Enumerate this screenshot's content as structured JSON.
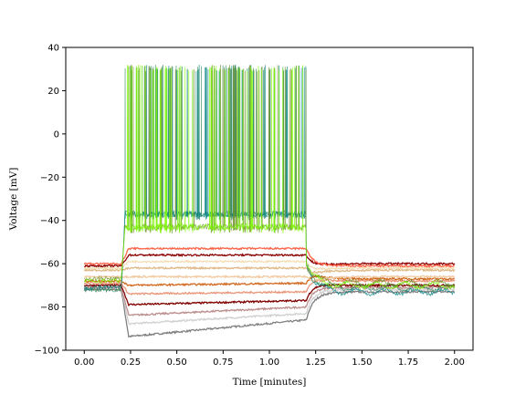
{
  "chart_data": {
    "type": "line",
    "title": "",
    "xlabel": "Time [minutes]",
    "ylabel": "Voltage [mV]",
    "xlim": [
      -0.1,
      2.1
    ],
    "ylim": [
      -100,
      40
    ],
    "xticks": [
      "0.00",
      "0.25",
      "0.50",
      "0.75",
      "1.00",
      "1.25",
      "1.50",
      "1.75",
      "2.00"
    ],
    "yticks": [
      "−100",
      "−80",
      "−60",
      "−40",
      "−20",
      "0",
      "20",
      "40"
    ],
    "grid": false,
    "legend": "none",
    "stimulus_window": [
      0.2,
      1.2
    ],
    "spike_peak_mV": 30,
    "spike_count_approx": 50,
    "series": [
      {
        "color": "#808080",
        "baseline": -72,
        "step_start": -94,
        "step_end": -86,
        "recovery": -73
      },
      {
        "color": "#d0d0d0",
        "baseline": -71,
        "step_start": -88,
        "step_end": -83,
        "recovery": -72
      },
      {
        "color": "#bc8f8f",
        "baseline": -71,
        "step_start": -84,
        "step_end": -80,
        "recovery": -71
      },
      {
        "color": "#800000",
        "baseline": -70,
        "step_start": -79,
        "step_end": -77,
        "recovery": -70
      },
      {
        "color": "#e9967a",
        "baseline": -69,
        "step_start": -74,
        "step_end": -73,
        "recovery": -68
      },
      {
        "color": "#d2691e",
        "baseline": -68,
        "step_start": -70,
        "step_end": -69,
        "recovery": -67
      },
      {
        "color": "#f0c9a0",
        "baseline": -66,
        "step_start": -66,
        "step_end": -66,
        "recovery": -66
      },
      {
        "color": "#deb887",
        "baseline": -63,
        "step_start": -62,
        "step_end": -62,
        "recovery": -63
      },
      {
        "color": "#f5deb3",
        "baseline": -62,
        "step_start": -59,
        "step_end": -59,
        "recovery": -62
      },
      {
        "color": "#8b0000",
        "baseline": -61,
        "step_start": -56,
        "step_end": -56,
        "recovery": -60
      },
      {
        "color": "#ff6347",
        "baseline": -60,
        "step_start": -53,
        "step_end": -53,
        "recovery": -61
      },
      {
        "color": "#2e8b57",
        "baseline": -72,
        "spiking": true,
        "recovery": -71
      },
      {
        "color": "#008080",
        "baseline": -71,
        "spiking": true,
        "recovery": -73
      },
      {
        "color": "#6b8e23",
        "baseline": -67,
        "spiking": true,
        "recovery": -69
      },
      {
        "color": "#7cfc00",
        "baseline": -68,
        "spiking": true,
        "recovery": -70
      }
    ]
  }
}
